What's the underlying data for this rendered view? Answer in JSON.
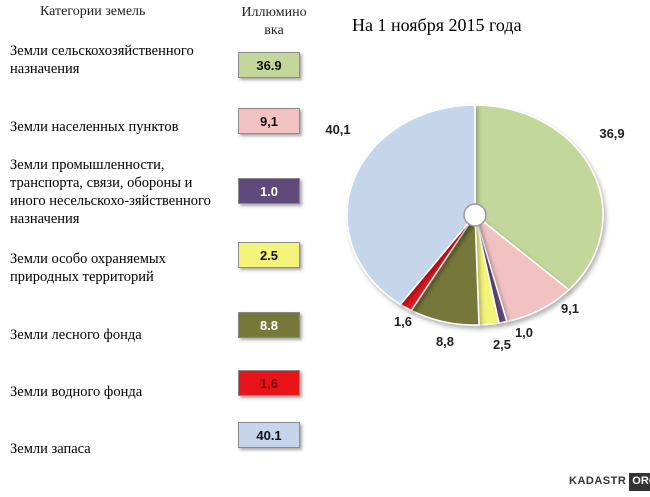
{
  "header": {
    "categories_label": "Категории земель",
    "legend_label": "Иллюмино\nвка",
    "title": "На 1 ноября 2015 года"
  },
  "legend": [
    {
      "name": "Земли сельскохозяйственного назначения",
      "box": "36.9",
      "label": "36,9",
      "color": "#c4d79b"
    },
    {
      "name": "Земли населенных пунктов",
      "box": "9,1",
      "label": "9,1",
      "color": "#f2c2c2"
    },
    {
      "name": "Земли промышленности, транспорта, связи, обороны и иного несельскохо-зяйственного назначения",
      "box": "1.0",
      "label": "1,0",
      "color": "#604a7b"
    },
    {
      "name": "Земли особо охраняемых природных территорий",
      "box": "2.5",
      "label": "2,5",
      "color": "#f4f47a"
    },
    {
      "name": "Земли лесного фонда",
      "box": "8.8",
      "label": "8,8",
      "color": "#76783a"
    },
    {
      "name": "Земли водного фонда",
      "box": "1,6",
      "label": "1,6",
      "color": "#e8141a"
    },
    {
      "name": "Земли запаса",
      "box": "40.1",
      "label": "40,1",
      "color": "#c5d5ea"
    }
  ],
  "chart_data": {
    "type": "pie",
    "title": "На 1 ноября 2015 года",
    "categories": [
      "Земли сельскохозяйственного назначения",
      "Земли населенных пунктов",
      "Земли промышленности, транспорта, связи, обороны и иного несельскохо-зяйственного назначения",
      "Земли особо охраняемых природных территорий",
      "Земли лесного фонда",
      "Земли водного фонда",
      "Земли запаса"
    ],
    "values": [
      36.9,
      9.1,
      1.0,
      2.5,
      8.8,
      1.6,
      40.1
    ],
    "labels": [
      "36,9",
      "9,1",
      "1,0",
      "2,5",
      "8,8",
      "1,6",
      "40,1"
    ]
  },
  "watermark": {
    "left": "KADASTR",
    "right": "ORG"
  }
}
